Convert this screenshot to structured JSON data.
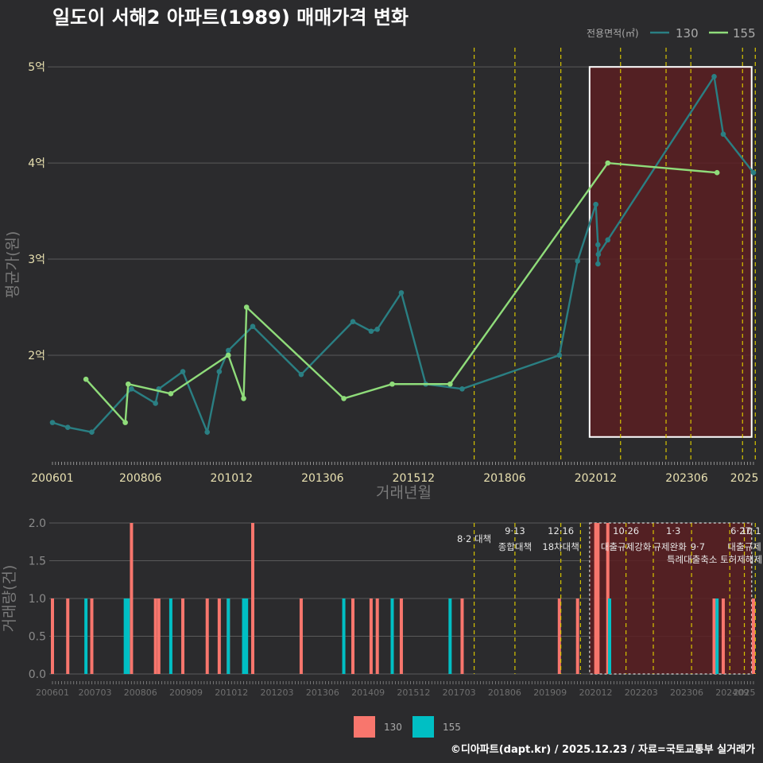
{
  "title": "일도이 서해2 아파트(1989) 매매가격 변화",
  "footer": "©디아파트(dapt.kr) / 2025.12.23 / 자료=국토교통부 실거래가",
  "colors": {
    "background": "#2b2b2d",
    "line130": "#2a7f83",
    "line155": "#8fdc7a",
    "bar130": "#f8766d",
    "bar155": "#00bfc4",
    "policy": "#d6c400",
    "highlight_fill": "#5a1f22",
    "grid": "#5a5a5a",
    "text": "#cfcfcf"
  },
  "chart_data": [
    {
      "type": "line",
      "title": "일도이 서해2 아파트(1989) 매매가격 변화",
      "xlabel": "거래년월",
      "ylabel": "평균가(원)",
      "xlim": [
        2006.0,
        2025.25
      ],
      "ylim": [
        0.9,
        5.2
      ],
      "x_ticks": [
        {
          "label": "200601",
          "x": 2006.0
        },
        {
          "label": "200806",
          "x": 2008.417
        },
        {
          "label": "201012",
          "x": 2010.917
        },
        {
          "label": "201306",
          "x": 2013.417
        },
        {
          "label": "201512",
          "x": 2015.917
        },
        {
          "label": "201806",
          "x": 2018.417
        },
        {
          "label": "202012",
          "x": 2020.917
        },
        {
          "label": "202306",
          "x": 2023.417
        },
        {
          "label": "2025",
          "x": 2025.0
        }
      ],
      "y_ticks": [
        {
          "label": "2억",
          "value": 2
        },
        {
          "label": "3억",
          "value": 3
        },
        {
          "label": "4억",
          "value": 4
        },
        {
          "label": "5억",
          "value": 5
        }
      ],
      "legend": {
        "title": "전용면적(㎡)",
        "position": "top-right",
        "entries": [
          "130",
          "155"
        ]
      },
      "highlight_range": {
        "x": [
          2020.75,
          2025.2
        ],
        "y": [
          1.15,
          5.0
        ]
      },
      "policy_lines": [
        2017.58,
        2018.7,
        2019.96,
        2021.6,
        2022.85,
        2023.53,
        2024.95,
        2025.3,
        2025.62
      ],
      "series": [
        {
          "name": "130",
          "points": [
            {
              "x": 2006.0,
              "y": 1.3
            },
            {
              "x": 2006.42,
              "y": 1.25
            },
            {
              "x": 2007.08,
              "y": 1.2
            },
            {
              "x": 2008.17,
              "y": 1.65
            },
            {
              "x": 2008.83,
              "y": 1.5
            },
            {
              "x": 2008.92,
              "y": 1.65
            },
            {
              "x": 2009.58,
              "y": 1.83
            },
            {
              "x": 2010.25,
              "y": 1.2
            },
            {
              "x": 2010.58,
              "y": 1.83
            },
            {
              "x": 2010.83,
              "y": 2.05
            },
            {
              "x": 2011.5,
              "y": 2.3
            },
            {
              "x": 2012.83,
              "y": 1.8
            },
            {
              "x": 2014.25,
              "y": 2.35
            },
            {
              "x": 2014.75,
              "y": 2.25
            },
            {
              "x": 2014.92,
              "y": 2.27
            },
            {
              "x": 2015.58,
              "y": 2.65
            },
            {
              "x": 2016.25,
              "y": 1.7
            },
            {
              "x": 2017.25,
              "y": 1.65
            },
            {
              "x": 2019.92,
              "y": 2.0
            },
            {
              "x": 2020.42,
              "y": 2.98
            },
            {
              "x": 2020.92,
              "y": 3.57
            },
            {
              "x": 2020.98,
              "y": 3.15
            },
            {
              "x": 2020.98,
              "y": 2.95
            },
            {
              "x": 2020.99,
              "y": 3.05
            },
            {
              "x": 2021.25,
              "y": 3.2
            },
            {
              "x": 2024.17,
              "y": 4.9
            },
            {
              "x": 2024.42,
              "y": 4.3
            },
            {
              "x": 2025.25,
              "y": 3.9
            }
          ]
        },
        {
          "name": "155",
          "points": [
            {
              "x": 2006.92,
              "y": 1.75
            },
            {
              "x": 2008.0,
              "y": 1.3
            },
            {
              "x": 2008.08,
              "y": 1.7
            },
            {
              "x": 2009.25,
              "y": 1.6
            },
            {
              "x": 2010.83,
              "y": 2.0
            },
            {
              "x": 2011.25,
              "y": 1.55
            },
            {
              "x": 2011.33,
              "y": 2.5
            },
            {
              "x": 2014.0,
              "y": 1.55
            },
            {
              "x": 2015.33,
              "y": 1.7
            },
            {
              "x": 2016.92,
              "y": 1.7
            },
            {
              "x": 2021.25,
              "y": 4.0
            },
            {
              "x": 2024.25,
              "y": 3.9
            }
          ]
        }
      ]
    },
    {
      "type": "bar",
      "xlabel": "",
      "ylabel": "거래량(건)",
      "xlim": [
        2006.0,
        2025.25
      ],
      "ylim": [
        0,
        2.0
      ],
      "y_ticks": [
        {
          "label": "0.0",
          "value": 0
        },
        {
          "label": "0.5",
          "value": 0.5
        },
        {
          "label": "1.0",
          "value": 1.0
        },
        {
          "label": "1.5",
          "value": 1.5
        },
        {
          "label": "2.0",
          "value": 2.0
        }
      ],
      "x_ticks": [
        {
          "label": "200601",
          "x": 2006.0
        },
        {
          "label": "200703",
          "x": 2007.167
        },
        {
          "label": "200806",
          "x": 2008.417
        },
        {
          "label": "200909",
          "x": 2009.667
        },
        {
          "label": "201012",
          "x": 2010.917
        },
        {
          "label": "201203",
          "x": 2012.167
        },
        {
          "label": "201306",
          "x": 2013.417
        },
        {
          "label": "201409",
          "x": 2014.667
        },
        {
          "label": "201512",
          "x": 2015.917
        },
        {
          "label": "201703",
          "x": 2017.167
        },
        {
          "label": "201806",
          "x": 2018.417
        },
        {
          "label": "201909",
          "x": 2019.667
        },
        {
          "label": "202012",
          "x": 2020.917
        },
        {
          "label": "202203",
          "x": 2022.167
        },
        {
          "label": "202306",
          "x": 2023.417
        },
        {
          "label": "202409",
          "x": 2024.667
        },
        {
          "label": "2025",
          "x": 2025.0
        }
      ],
      "legend": {
        "position": "bottom",
        "entries": [
          "130",
          "155"
        ]
      },
      "highlight_range": [
        2020.75,
        2025.2
      ],
      "policy_lines": [
        2017.58,
        2018.7,
        2019.96,
        2020.5,
        2021.75,
        2022.5,
        2023.55,
        2024.6,
        2025.0,
        2025.3
      ],
      "annotations": [
        {
          "x": 2017.58,
          "level": 1,
          "text": "8·2 대책"
        },
        {
          "x": 2018.7,
          "level": 0,
          "text": "9·13"
        },
        {
          "x": 2018.7,
          "level": 2,
          "text": "종합대책"
        },
        {
          "x": 2019.96,
          "level": 0,
          "text": "12·16"
        },
        {
          "x": 2019.96,
          "level": 2,
          "text": "18차대책"
        },
        {
          "x": 2021.75,
          "level": 0,
          "text": "10·26"
        },
        {
          "x": 2021.75,
          "level": 2,
          "text": "대출규제강화"
        },
        {
          "x": 2023.05,
          "level": 0,
          "text": "1·3"
        },
        {
          "x": 2022.95,
          "level": 2,
          "text": "규제완화"
        },
        {
          "x": 2023.72,
          "level": 2,
          "text": "9·7"
        },
        {
          "x": 2024.18,
          "level": 3,
          "text": "특례대출축소 토허제해제"
        },
        {
          "x": 2024.9,
          "level": 0,
          "text": "6·27"
        },
        {
          "x": 2025.18,
          "level": 0,
          "text": "10·1"
        },
        {
          "x": 2025.0,
          "level": 2,
          "text": "대출규제"
        }
      ],
      "series": [
        {
          "name": "130",
          "bars": [
            {
              "x": 2006.0,
              "y": 1
            },
            {
              "x": 2006.42,
              "y": 1
            },
            {
              "x": 2007.08,
              "y": 1
            },
            {
              "x": 2008.17,
              "y": 2
            },
            {
              "x": 2008.83,
              "y": 1
            },
            {
              "x": 2008.92,
              "y": 1
            },
            {
              "x": 2009.58,
              "y": 1
            },
            {
              "x": 2010.25,
              "y": 1
            },
            {
              "x": 2010.58,
              "y": 1
            },
            {
              "x": 2010.83,
              "y": 1
            },
            {
              "x": 2011.5,
              "y": 2
            },
            {
              "x": 2012.83,
              "y": 1
            },
            {
              "x": 2014.25,
              "y": 1
            },
            {
              "x": 2014.75,
              "y": 1
            },
            {
              "x": 2014.92,
              "y": 1
            },
            {
              "x": 2015.58,
              "y": 1
            },
            {
              "x": 2017.25,
              "y": 1
            },
            {
              "x": 2019.92,
              "y": 1
            },
            {
              "x": 2020.42,
              "y": 1
            },
            {
              "x": 2020.92,
              "y": 2
            },
            {
              "x": 2020.98,
              "y": 2
            },
            {
              "x": 2021.25,
              "y": 2
            },
            {
              "x": 2024.17,
              "y": 1
            },
            {
              "x": 2024.42,
              "y": 1
            },
            {
              "x": 2025.25,
              "y": 1
            }
          ]
        },
        {
          "name": "155",
          "bars": [
            {
              "x": 2006.92,
              "y": 1
            },
            {
              "x": 2008.0,
              "y": 1
            },
            {
              "x": 2008.08,
              "y": 1
            },
            {
              "x": 2009.25,
              "y": 1
            },
            {
              "x": 2010.83,
              "y": 1
            },
            {
              "x": 2011.25,
              "y": 1
            },
            {
              "x": 2011.33,
              "y": 1
            },
            {
              "x": 2014.0,
              "y": 1
            },
            {
              "x": 2015.33,
              "y": 1
            },
            {
              "x": 2016.92,
              "y": 1
            },
            {
              "x": 2021.3,
              "y": 1
            },
            {
              "x": 2024.25,
              "y": 1
            }
          ]
        }
      ]
    }
  ]
}
